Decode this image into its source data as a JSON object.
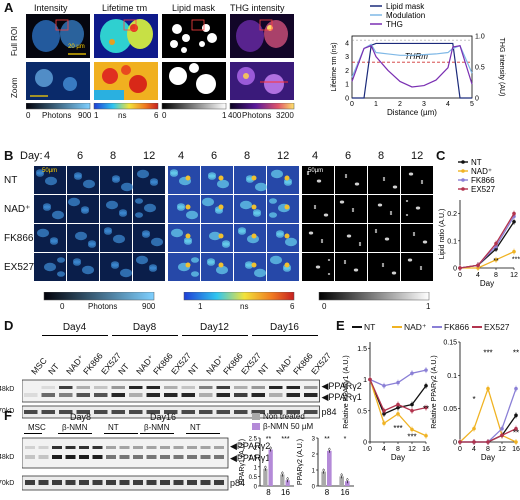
{
  "panels": {
    "A": {
      "letter": "A",
      "column_titles": [
        "Intensity",
        "Lifetime τm",
        "Lipid mask",
        "THG intensity"
      ],
      "row_labels": [
        "Full ROI",
        "Zoom"
      ],
      "scale_bar_label": "20 µm",
      "colorbars": [
        {
          "min": "0",
          "max": "900",
          "unit": "Photons"
        },
        {
          "min": "1",
          "max": "6",
          "unit": "ns"
        },
        {
          "min": "0",
          "max": "1",
          "unit": ""
        },
        {
          "min": "400",
          "max": "3200",
          "unit": "Photons"
        }
      ],
      "profile_chart": {
        "legend": [
          "Lipid mask",
          "Modulation",
          "THG"
        ],
        "colors": {
          "lipid_mask": "#1b2a7a",
          "modulation": "#7fb8e6",
          "thg": "#7a2fb2"
        },
        "threshold_label": "THRm",
        "xlabel": "Distance (µm)",
        "ylabel_left": "Lifetime τm (ns)",
        "ylabel_right": "THG intensity (AU)",
        "xticks": [
          "0",
          "1",
          "2",
          "3",
          "4",
          "5"
        ],
        "yticks_left": [
          "0",
          "1",
          "2",
          "3",
          "4"
        ],
        "yticks_right": [
          "0",
          "0.5",
          "1.0"
        ]
      }
    },
    "B": {
      "letter": "B",
      "day_prefix": "Day:",
      "days": [
        "4",
        "6",
        "8",
        "12"
      ],
      "row_labels": [
        "NT",
        "NAD⁺",
        "FK866",
        "EX527"
      ],
      "scale_bar_label": "50µm",
      "colorbars": [
        {
          "min": "0",
          "max": "900",
          "unit": "Photons"
        },
        {
          "min": "1",
          "max": "6",
          "unit": "ns"
        },
        {
          "min": "0",
          "max": "1",
          "unit": ""
        }
      ]
    },
    "C": {
      "letter": "C",
      "significance": [
        "**",
        "***"
      ]
    },
    "D": {
      "letter": "D",
      "groups": [
        "Day4",
        "Day8",
        "Day12",
        "Day16"
      ],
      "lane_labels": [
        "MSC",
        "NT",
        "NAD⁺",
        "FK866",
        "EX527",
        "NT",
        "NAD⁺",
        "FK866",
        "EX527",
        "NT",
        "NAD⁺",
        "FK866",
        "EX527",
        "NT",
        "NAD⁺",
        "FK866",
        "EX527"
      ],
      "markers": [
        "48kD",
        "70kD"
      ],
      "bands": [
        "PPARγ2",
        "PPARγ1",
        "p84"
      ]
    },
    "E": {
      "letter": "E",
      "legend": [
        "NT",
        "NAD⁺",
        "FK866",
        "EX527"
      ]
    },
    "F": {
      "letter": "F",
      "groups": [
        "Day8",
        "Day16"
      ],
      "lanes": [
        "MSC",
        "β-NMN",
        "NT",
        "β-NMN",
        "NT"
      ],
      "markers": [
        "48kD",
        "70kD"
      ],
      "bands": [
        "PPARγ2",
        "PPARγ1",
        "p84"
      ],
      "legend": [
        "Non treated",
        "β-NMN 50 µM"
      ],
      "legend_colors": [
        "#a9a9a9",
        "#b48ad8"
      ]
    }
  },
  "chart_data": [
    {
      "type": "line",
      "id": "A-profile",
      "x": [
        0,
        0.5,
        0.8,
        1,
        1.5,
        2,
        2.5,
        3,
        3.5,
        4,
        4.2,
        4.5,
        5
      ],
      "series": [
        {
          "name": "Lipid mask",
          "values": [
            0,
            0,
            0.85,
            0.88,
            0.88,
            0.88,
            0.88,
            0.88,
            0.88,
            0.88,
            0.88,
            0,
            0
          ]
        },
        {
          "name": "Modulation",
          "values": [
            1.5,
            3.6,
            3.9,
            3.3,
            3.2,
            3.1,
            3.1,
            3.15,
            3.2,
            3.3,
            3.6,
            3.8,
            1.8
          ]
        },
        {
          "name": "THG",
          "values": [
            1.2,
            3.6,
            3.8,
            3.0,
            2.0,
            1.2,
            0.8,
            0.9,
            1.3,
            2.2,
            3.7,
            3.8,
            1.0
          ]
        }
      ],
      "threshold": 2.6,
      "xlim": [
        0,
        5
      ],
      "ylim": [
        0,
        4.5
      ],
      "y2lim": [
        0,
        1.0
      ],
      "xlabel": "Distance (µm)",
      "ylabel": "Lifetime τm (ns)",
      "y2label": "THG intensity (AU)",
      "title": ""
    },
    {
      "type": "line",
      "id": "C",
      "x": [
        0,
        4,
        8,
        12
      ],
      "series": [
        {
          "name": "NT",
          "color": "#111111",
          "values": [
            0,
            0.01,
            0.07,
            0.17
          ]
        },
        {
          "name": "NAD⁺",
          "color": "#f0b323",
          "values": [
            0,
            0.0,
            0.03,
            0.06
          ]
        },
        {
          "name": "FK866",
          "color": "#8a7fd6",
          "values": [
            0,
            0.01,
            0.08,
            0.19
          ]
        },
        {
          "name": "EX527",
          "color": "#b2344e",
          "values": [
            0,
            0.01,
            0.09,
            0.2
          ]
        }
      ],
      "xlim": [
        0,
        12
      ],
      "ylim": [
        0,
        0.25
      ],
      "yticks": [
        0,
        0.1,
        0.2
      ],
      "xticks": [
        0,
        4,
        8,
        12
      ],
      "xlabel": "Day",
      "ylabel": "Lipid ratio (A.U.)",
      "title": ""
    },
    {
      "type": "line",
      "id": "E-left",
      "x": [
        0,
        4,
        8,
        12,
        16
      ],
      "series": [
        {
          "name": "NT",
          "color": "#111111",
          "values": [
            1.0,
            0.45,
            0.55,
            0.6,
            0.9
          ]
        },
        {
          "name": "NAD⁺",
          "color": "#f0b323",
          "values": [
            1.0,
            0.3,
            0.45,
            0.2,
            0.1
          ]
        },
        {
          "name": "FK866",
          "color": "#8a7fd6",
          "values": [
            1.0,
            0.9,
            0.95,
            1.1,
            1.15
          ]
        },
        {
          "name": "EX527",
          "color": "#b2344e",
          "values": [
            1.0,
            0.5,
            0.6,
            0.5,
            0.55
          ]
        }
      ],
      "xlim": [
        0,
        16
      ],
      "ylim": [
        0,
        1.6
      ],
      "yticks": [
        0,
        0.5,
        1.0,
        1.5
      ],
      "xticks": [
        0,
        4,
        8,
        12,
        16
      ],
      "xlabel": "Day",
      "ylabel": "Relative PPARγ1 (A.U.)",
      "title": ""
    },
    {
      "type": "line",
      "id": "E-right",
      "x": [
        0,
        4,
        8,
        12,
        16
      ],
      "series": [
        {
          "name": "NT",
          "color": "#111111",
          "values": [
            0,
            0.0,
            0.0,
            0.01,
            0.04
          ]
        },
        {
          "name": "NAD⁺",
          "color": "#f0b323",
          "values": [
            0,
            0.02,
            0.08,
            0.01,
            0.0
          ]
        },
        {
          "name": "FK866",
          "color": "#8a7fd6",
          "values": [
            0,
            0.0,
            0.0,
            0.02,
            0.08
          ]
        },
        {
          "name": "EX527",
          "color": "#b2344e",
          "values": [
            0,
            0.0,
            0.0,
            0.01,
            0.02
          ]
        }
      ],
      "xlim": [
        0,
        16
      ],
      "ylim": [
        0,
        0.15
      ],
      "yticks": [
        0,
        0.05,
        0.1,
        0.15
      ],
      "xticks": [
        0,
        4,
        8,
        12,
        16
      ],
      "xlabel": "Day",
      "ylabel": "Relative PPARγ2 (A.U.)",
      "title": ""
    },
    {
      "type": "bar",
      "id": "F-left",
      "categories": [
        "8",
        "16"
      ],
      "series": [
        {
          "name": "Non treated",
          "color": "#a9a9a9",
          "values": [
            0.9,
            0.6
          ]
        },
        {
          "name": "β-NMN 50 µM",
          "color": "#b48ad8",
          "values": [
            1.9,
            0.3
          ]
        }
      ],
      "ylim": [
        0,
        2.5
      ],
      "yticks": [
        0,
        0.5,
        1.0,
        1.5,
        2.0,
        2.5
      ],
      "ylabel": "PPARγ1 (A.U.)",
      "xlabel": "",
      "title": ""
    },
    {
      "type": "bar",
      "id": "F-right",
      "categories": [
        "8",
        "16"
      ],
      "series": [
        {
          "name": "Non treated",
          "color": "#a9a9a9",
          "values": [
            0.9,
            0.6
          ]
        },
        {
          "name": "β-NMN 50 µM",
          "color": "#b48ad8",
          "values": [
            2.2,
            0.3
          ]
        }
      ],
      "ylim": [
        0,
        3
      ],
      "yticks": [
        0,
        1,
        2,
        3
      ],
      "ylabel": "PPARγ2 (A.U.)",
      "xlabel": "",
      "title": ""
    }
  ]
}
